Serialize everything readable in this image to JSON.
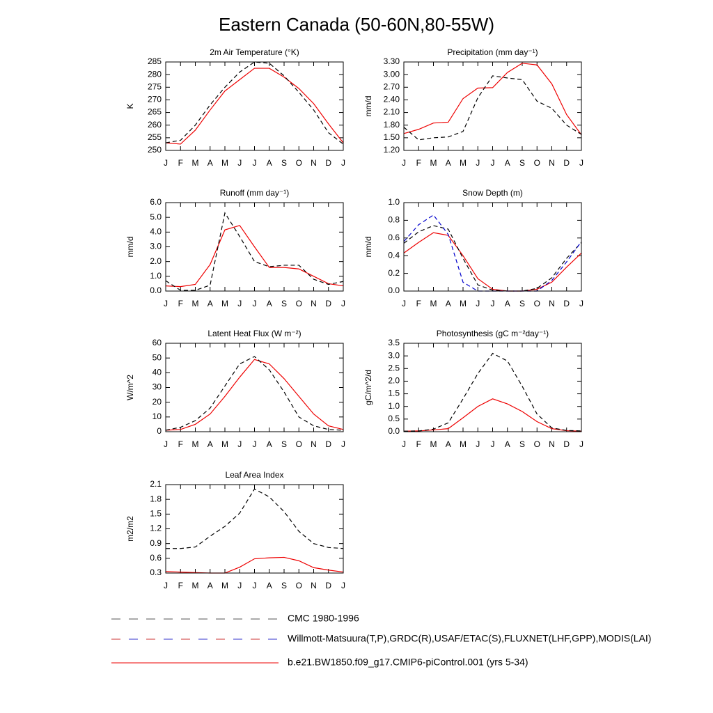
{
  "title": "Eastern Canada (50-60N,80-55W)",
  "legend": [
    {
      "label": "CMC 1980-1996",
      "colors": [
        "#555555"
      ],
      "style": "dashed"
    },
    {
      "label": "Willmott-Matsuura(T,P),GRDC(R),USAF/ETAC(S),FLUXNET(LHF,GPP),MODIS(LAI)",
      "colors": [
        "#cc3333",
        "#3333cc"
      ],
      "style": "dashed"
    },
    {
      "label": "b.e21.BW1850.f09_g17.CMIP6-piControl.001 (yrs 5-34)",
      "colors": [
        "#ee0000"
      ],
      "style": "solid"
    }
  ],
  "chart_data": [
    {
      "type": "line",
      "title": "2m Air Temperature (°K)",
      "ylabel": "K",
      "categories": [
        "J",
        "F",
        "M",
        "A",
        "M",
        "J",
        "J",
        "A",
        "S",
        "O",
        "N",
        "D",
        "J"
      ],
      "ylim": [
        250,
        285
      ],
      "yticks": [
        250,
        255,
        260,
        265,
        270,
        275,
        280,
        285
      ],
      "series": [
        {
          "color": "#ee0000",
          "style": "solid",
          "values": [
            253,
            252.5,
            258,
            266,
            273.5,
            278,
            282.5,
            282.5,
            279,
            274.5,
            268.5,
            260.5,
            253
          ]
        },
        {
          "color": "#000000",
          "style": "dashed",
          "values": [
            253,
            254,
            260,
            268,
            275,
            281,
            285,
            284.5,
            279.5,
            273,
            266,
            257,
            252.5
          ]
        }
      ]
    },
    {
      "type": "line",
      "title": "Precipitation (mm day⁻¹)",
      "ylabel": "mm/d",
      "categories": [
        "J",
        "F",
        "M",
        "A",
        "M",
        "J",
        "J",
        "A",
        "S",
        "O",
        "N",
        "D",
        "J"
      ],
      "ylim": [
        1.2,
        3.3
      ],
      "yticks": [
        {
          "value": 1.2,
          "label": "1.20"
        },
        {
          "value": 1.5,
          "label": "1.50"
        },
        {
          "value": 1.8,
          "label": "1.80"
        },
        {
          "value": 2.1,
          "label": "2.10"
        },
        {
          "value": 2.4,
          "label": "2.40"
        },
        {
          "value": 2.7,
          "label": "2.70"
        },
        {
          "value": 3.0,
          "label": "3.00"
        },
        {
          "value": 3.3,
          "label": "3.30"
        }
      ],
      "series": [
        {
          "color": "#ee0000",
          "style": "solid",
          "values": [
            1.6,
            1.7,
            1.85,
            1.87,
            2.43,
            2.68,
            2.69,
            3.05,
            3.27,
            3.23,
            2.78,
            2.05,
            1.57
          ]
        },
        {
          "color": "#000000",
          "style": "dashed",
          "values": [
            1.75,
            1.45,
            1.5,
            1.52,
            1.65,
            2.45,
            2.97,
            2.92,
            2.88,
            2.37,
            2.2,
            1.8,
            1.58
          ]
        }
      ]
    },
    {
      "type": "line",
      "title": "Runoff (mm day⁻¹)",
      "ylabel": "mm/d",
      "categories": [
        "J",
        "F",
        "M",
        "A",
        "M",
        "J",
        "J",
        "A",
        "S",
        "O",
        "N",
        "D",
        "J"
      ],
      "ylim": [
        0,
        6
      ],
      "yticks": [
        {
          "value": 0,
          "label": "0.0"
        },
        {
          "value": 1,
          "label": "1.0"
        },
        {
          "value": 2,
          "label": "2.0"
        },
        {
          "value": 3,
          "label": "3.0"
        },
        {
          "value": 4,
          "label": "4.0"
        },
        {
          "value": 5,
          "label": "5.0"
        },
        {
          "value": 6,
          "label": "6.0"
        }
      ],
      "series": [
        {
          "color": "#ee0000",
          "style": "solid",
          "values": [
            0.35,
            0.3,
            0.45,
            1.8,
            4.15,
            4.45,
            3.0,
            1.6,
            1.6,
            1.5,
            1.0,
            0.5,
            0.35
          ]
        },
        {
          "color": "#000000",
          "style": "dashed",
          "values": [
            0.7,
            0.05,
            0.05,
            0.4,
            5.3,
            3.7,
            2.0,
            1.65,
            1.75,
            1.75,
            0.8,
            0.45,
            0.65
          ]
        }
      ]
    },
    {
      "type": "line",
      "title": "Snow Depth (m)",
      "ylabel": "mm/d",
      "categories": [
        "J",
        "F",
        "M",
        "A",
        "M",
        "J",
        "J",
        "A",
        "S",
        "O",
        "N",
        "D",
        "J"
      ],
      "ylim": [
        0,
        1
      ],
      "yticks": [
        {
          "value": 0,
          "label": "0.0"
        },
        0.2,
        0.4,
        0.6,
        0.8,
        {
          "value": 1,
          "label": "1.0"
        }
      ],
      "series": [
        {
          "color": "#ee0000",
          "style": "solid",
          "values": [
            0.43,
            0.55,
            0.66,
            0.63,
            0.4,
            0.14,
            0.02,
            0,
            0,
            0.02,
            0.1,
            0.27,
            0.43
          ]
        },
        {
          "color": "#000000",
          "style": "dashed",
          "values": [
            0.54,
            0.67,
            0.74,
            0.7,
            0.37,
            0.07,
            0.01,
            0,
            0,
            0.03,
            0.15,
            0.37,
            0.55
          ]
        },
        {
          "color": "#0000cc",
          "style": "dashed",
          "values": [
            0.56,
            0.75,
            0.86,
            0.64,
            0.1,
            0,
            0,
            0,
            0,
            0,
            0.12,
            0.33,
            0.56
          ]
        }
      ]
    },
    {
      "type": "line",
      "title": "Latent Heat Flux (W m⁻²)",
      "ylabel": "W/m^2",
      "categories": [
        "J",
        "F",
        "M",
        "A",
        "M",
        "J",
        "J",
        "A",
        "S",
        "O",
        "N",
        "D",
        "J"
      ],
      "ylim": [
        0,
        60
      ],
      "yticks": [
        0,
        10,
        20,
        30,
        40,
        50,
        60
      ],
      "series": [
        {
          "color": "#ee0000",
          "style": "solid",
          "values": [
            1,
            1.5,
            5,
            12,
            24,
            37,
            49,
            46,
            36,
            24,
            12,
            4,
            1.5
          ]
        },
        {
          "color": "#000000",
          "style": "dashed",
          "values": [
            1,
            3,
            7.5,
            16,
            31,
            46,
            51,
            42,
            27,
            10,
            4,
            1.5,
            1
          ]
        }
      ]
    },
    {
      "type": "line",
      "title": "Photosynthesis (gC m⁻²day⁻¹)",
      "ylabel": "gC/m^2/d",
      "categories": [
        "J",
        "F",
        "M",
        "A",
        "M",
        "J",
        "J",
        "A",
        "S",
        "O",
        "N",
        "D",
        "J"
      ],
      "ylim": [
        0,
        3.5
      ],
      "yticks": [
        {
          "value": 0,
          "label": "0.0"
        },
        0.5,
        {
          "value": 1,
          "label": "1.0"
        },
        1.5,
        {
          "value": 2,
          "label": "2.0"
        },
        2.5,
        {
          "value": 3,
          "label": "3.0"
        },
        3.5
      ],
      "series": [
        {
          "color": "#ee0000",
          "style": "solid",
          "values": [
            0.02,
            0.03,
            0.07,
            0.12,
            0.55,
            1.0,
            1.3,
            1.1,
            0.8,
            0.4,
            0.12,
            0.04,
            0.02
          ]
        },
        {
          "color": "#000000",
          "style": "dashed",
          "values": [
            0.02,
            0.03,
            0.1,
            0.35,
            1.3,
            2.3,
            3.1,
            2.8,
            1.8,
            0.7,
            0.15,
            0.05,
            0.03
          ]
        }
      ]
    },
    {
      "type": "line",
      "title": "Leaf Area Index",
      "ylabel": "m2/m2",
      "categories": [
        "J",
        "F",
        "M",
        "A",
        "M",
        "J",
        "J",
        "A",
        "S",
        "O",
        "N",
        "D",
        "J"
      ],
      "ylim": [
        0.3,
        2.1
      ],
      "yticks": [
        0.3,
        0.6,
        0.9,
        1.2,
        1.5,
        1.8,
        2.1
      ],
      "series": [
        {
          "color": "#ee0000",
          "style": "solid",
          "values": [
            0.33,
            0.32,
            0.31,
            0.3,
            0.3,
            0.42,
            0.59,
            0.61,
            0.62,
            0.55,
            0.41,
            0.36,
            0.32
          ]
        },
        {
          "color": "#000000",
          "style": "dashed",
          "values": [
            0.8,
            0.8,
            0.83,
            1.05,
            1.25,
            1.52,
            2.01,
            1.85,
            1.55,
            1.15,
            0.9,
            0.82,
            0.8
          ]
        }
      ]
    }
  ]
}
